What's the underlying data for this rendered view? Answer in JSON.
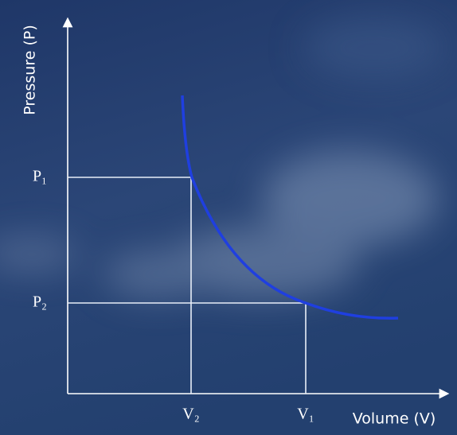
{
  "axes": {
    "y_label": "Pressure (P)",
    "x_label": "Volume (V)"
  },
  "points": [
    {
      "pressure_label": "P₁",
      "volume_label": "V₂"
    },
    {
      "pressure_label": "P₂",
      "volume_label": "V₁"
    }
  ]
}
